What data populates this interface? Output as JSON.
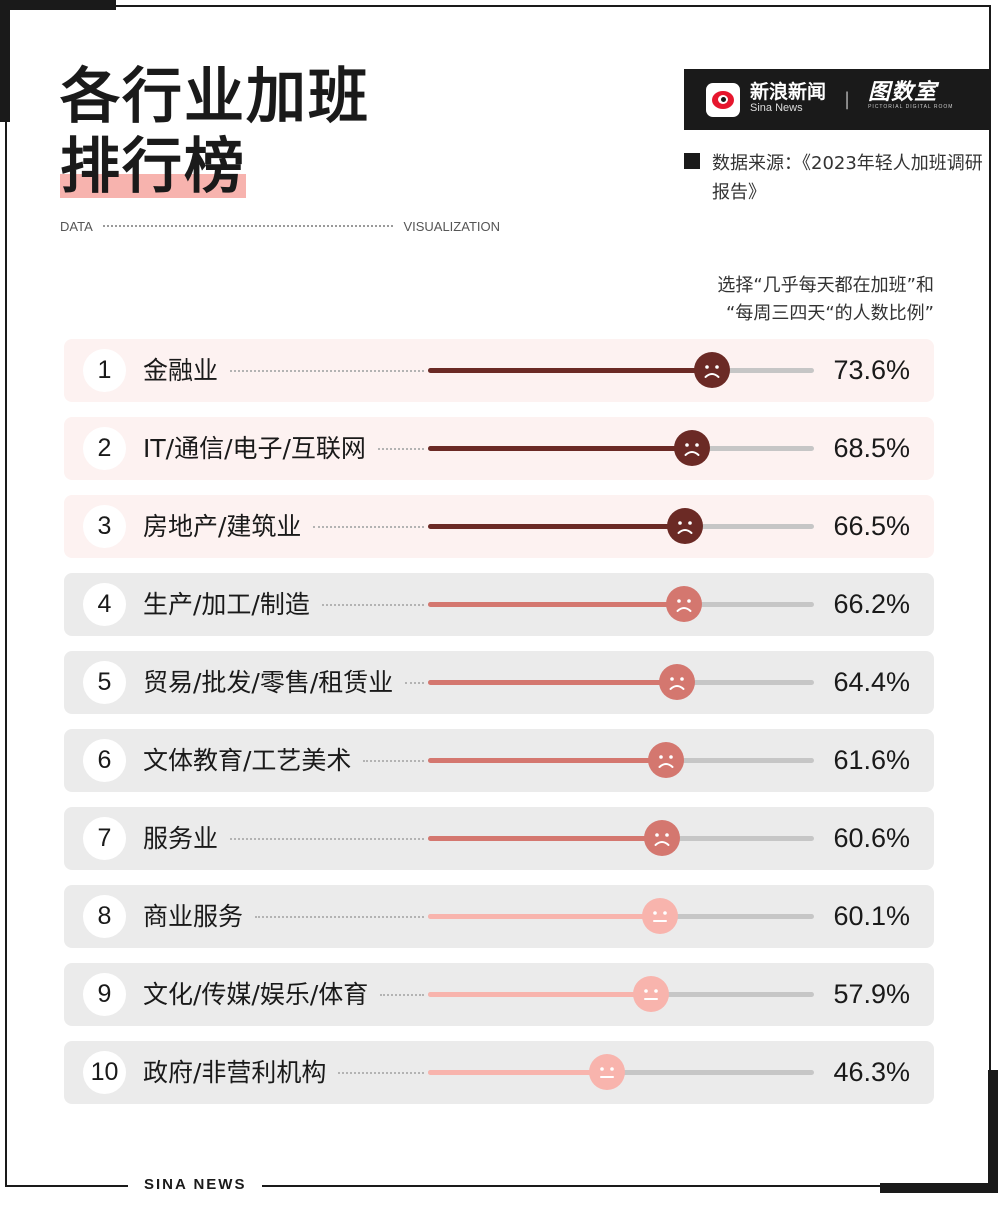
{
  "title": {
    "line1": "各行业加班",
    "line2": "排行榜"
  },
  "tagline": {
    "left": "DATA",
    "right": "VISUALIZATION"
  },
  "brand": {
    "sina_cn": "新浪新闻",
    "sina_en": "Sina News",
    "separator": "|",
    "room_cn": "图数室",
    "room_en": "PICTORIAL DIGITAL ROOM"
  },
  "source": "数据来源：《2023年轻人加班调研报告》",
  "note": {
    "line1": "选择“几乎每天都在加班”和",
    "line2": "“每周三四天“的人数比例”"
  },
  "footer": "SINA  NEWS",
  "colors": {
    "dark": "#6b2a25",
    "mid": "#d4776f",
    "light": "#f8b4ad",
    "bg_light": "#fdf2f1",
    "bg_grey": "#ebebeb"
  },
  "chart_data": {
    "type": "bar",
    "orientation": "horizontal",
    "title": "各行业加班排行榜",
    "subtitle": "选择“几乎每天都在加班”和“每周三四天“的人数比例”",
    "unit": "%",
    "ranks": [
      "1",
      "2",
      "3",
      "4",
      "5",
      "6",
      "7",
      "8",
      "9",
      "10"
    ],
    "categories": [
      "金融业",
      "IT/通信/电子/互联网",
      "房地产/建筑业",
      "生产/加工/制造",
      "贸易/批发/零售/租赁业",
      "文体教育/工艺美术",
      "服务业",
      "商业服务",
      "文化/传媒/娱乐/体育",
      "政府/非营利机构"
    ],
    "values": [
      73.6,
      68.5,
      66.5,
      66.2,
      64.4,
      61.6,
      60.6,
      60.1,
      57.9,
      46.3
    ],
    "labels": [
      "73.6%",
      "68.5%",
      "66.5%",
      "66.2%",
      "64.4%",
      "61.6%",
      "60.6%",
      "60.1%",
      "57.9%",
      "46.3%"
    ],
    "tiers": [
      "dark",
      "dark",
      "dark",
      "mid",
      "mid",
      "mid",
      "mid",
      "light",
      "light",
      "light"
    ],
    "faces": [
      "frown",
      "frown",
      "frown",
      "frown",
      "frown",
      "frown",
      "frown",
      "neutral",
      "neutral",
      "neutral"
    ],
    "xlim": [
      0,
      100
    ]
  }
}
